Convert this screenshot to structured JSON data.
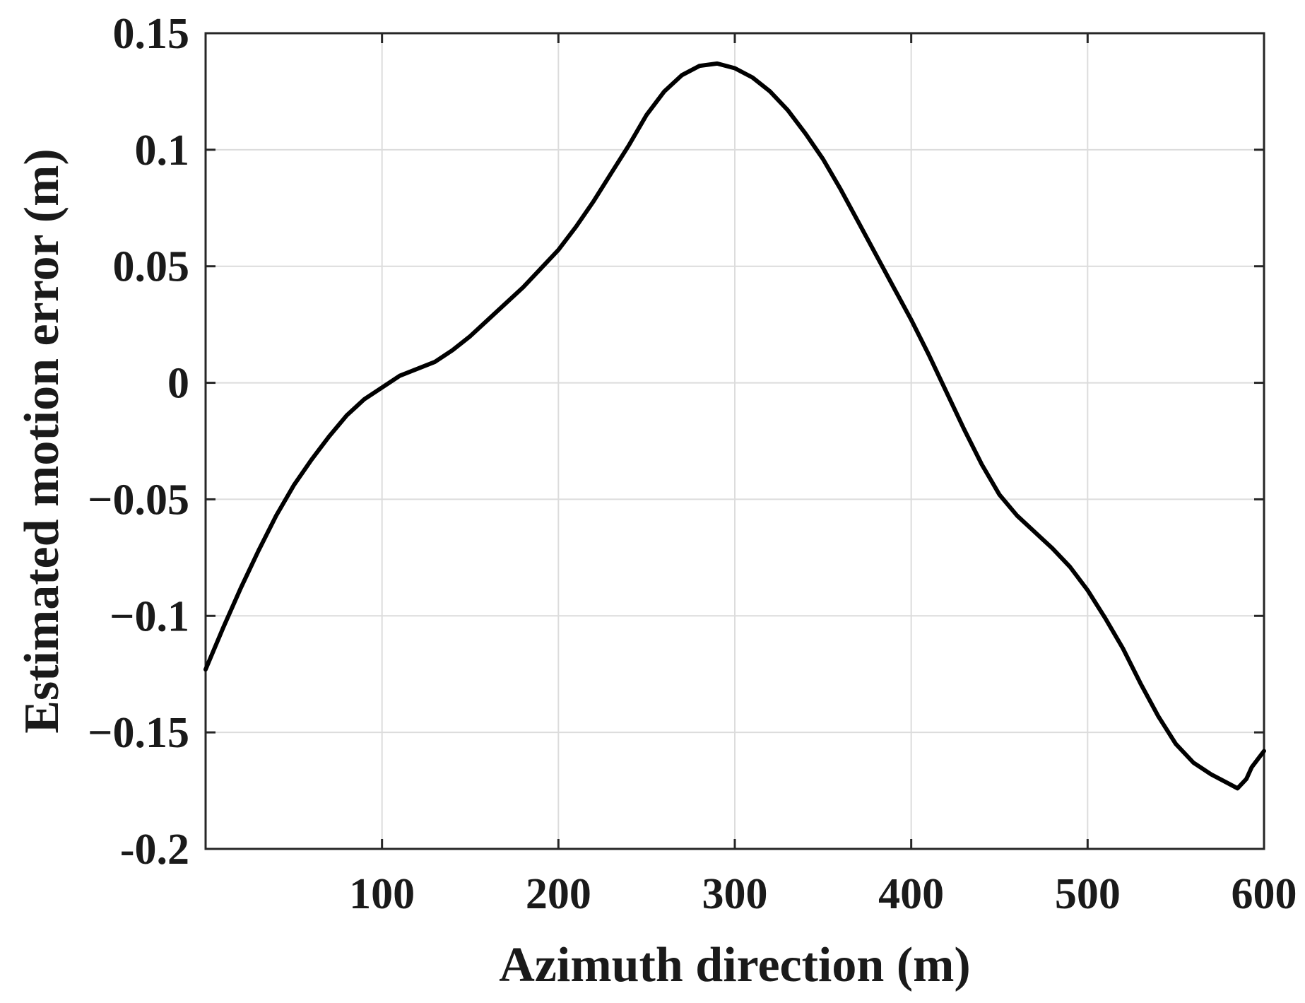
{
  "chart_data": {
    "type": "line",
    "xlabel": "Azimuth direction (m)",
    "ylabel": "Estimated motion error (m)",
    "xlim": [
      0,
      600
    ],
    "ylim": [
      -0.2,
      0.15
    ],
    "xticks": [
      100,
      200,
      300,
      400,
      500,
      600
    ],
    "xtick_labels": [
      "100",
      "200",
      "300",
      "400",
      "500",
      "600"
    ],
    "yticks": [
      -0.2,
      -0.15,
      -0.1,
      -0.05,
      0,
      0.05,
      0.1,
      0.15
    ],
    "ytick_labels": [
      "-0.2",
      "−0.15",
      "−0.1",
      "−0.05",
      "0",
      "0.05",
      "0.1",
      "0.15"
    ],
    "grid": true,
    "series": [
      {
        "color": "#000000",
        "x": [
          0,
          10,
          20,
          30,
          40,
          50,
          60,
          70,
          80,
          90,
          100,
          110,
          120,
          130,
          140,
          150,
          160,
          170,
          180,
          190,
          200,
          210,
          220,
          230,
          240,
          250,
          260,
          270,
          280,
          290,
          300,
          310,
          320,
          330,
          340,
          350,
          360,
          370,
          380,
          390,
          400,
          410,
          420,
          430,
          440,
          450,
          460,
          470,
          480,
          490,
          500,
          510,
          520,
          530,
          540,
          550,
          560,
          570,
          580,
          585,
          590,
          593,
          596,
          600
        ],
        "y": [
          -0.123,
          -0.105,
          -0.088,
          -0.072,
          -0.057,
          -0.044,
          -0.033,
          -0.023,
          -0.014,
          -0.007,
          -0.002,
          0.003,
          0.006,
          0.009,
          0.014,
          0.02,
          0.027,
          0.034,
          0.041,
          0.049,
          0.057,
          0.067,
          0.078,
          0.09,
          0.102,
          0.115,
          0.125,
          0.132,
          0.136,
          0.137,
          0.135,
          0.131,
          0.125,
          0.117,
          0.107,
          0.096,
          0.083,
          0.069,
          0.055,
          0.041,
          0.027,
          0.012,
          -0.004,
          -0.02,
          -0.035,
          -0.048,
          -0.057,
          -0.064,
          -0.071,
          -0.079,
          -0.089,
          -0.101,
          -0.114,
          -0.129,
          -0.143,
          -0.155,
          -0.163,
          -0.168,
          -0.172,
          -0.174,
          -0.17,
          -0.165,
          -0.162,
          -0.158
        ]
      }
    ]
  }
}
